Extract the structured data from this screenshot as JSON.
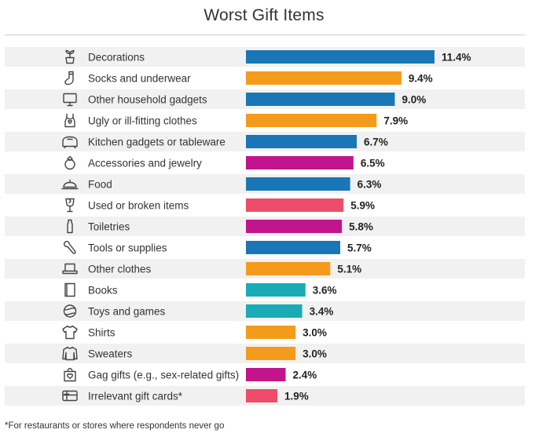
{
  "title": "Worst Gift Items",
  "footnote": "*For restaurants or stores where respondents never go",
  "colors": {
    "blue": "#1a77b5",
    "orange": "#f59b1c",
    "magenta": "#c2148c",
    "pink": "#ee4d6a",
    "teal": "#1aabb5",
    "stripe": "#f1f1f1"
  },
  "chart_data": {
    "type": "bar",
    "orientation": "horizontal",
    "title": "Worst Gift Items",
    "value_suffix": "%",
    "xlim": [
      0,
      11.4
    ],
    "rows": [
      {
        "label": "Decorations",
        "value": 11.4,
        "value_label": "11.4%",
        "color": "blue",
        "icon": "potted-plant-icon"
      },
      {
        "label": "Socks and underwear",
        "value": 9.4,
        "value_label": "9.4%",
        "color": "orange",
        "icon": "sock-icon"
      },
      {
        "label": "Other household gadgets",
        "value": 9.0,
        "value_label": "9.0%",
        "color": "blue",
        "icon": "monitor-icon"
      },
      {
        "label": "Ugly or ill-fitting clothes",
        "value": 7.9,
        "value_label": "7.9%",
        "color": "orange",
        "icon": "tank-top-icon"
      },
      {
        "label": "Kitchen gadgets or tableware",
        "value": 6.7,
        "value_label": "6.7%",
        "color": "blue",
        "icon": "toaster-icon"
      },
      {
        "label": "Accessories and jewelry",
        "value": 6.5,
        "value_label": "6.5%",
        "color": "magenta",
        "icon": "ring-icon"
      },
      {
        "label": "Food",
        "value": 6.3,
        "value_label": "6.3%",
        "color": "blue",
        "icon": "food-cloche-icon"
      },
      {
        "label": "Used or broken items",
        "value": 5.9,
        "value_label": "5.9%",
        "color": "pink",
        "icon": "broken-glass-icon"
      },
      {
        "label": "Toiletries",
        "value": 5.8,
        "value_label": "5.8%",
        "color": "magenta",
        "icon": "bottle-icon"
      },
      {
        "label": "Tools or supplies",
        "value": 5.7,
        "value_label": "5.7%",
        "color": "blue",
        "icon": "wrench-icon"
      },
      {
        "label": "Other clothes",
        "value": 5.1,
        "value_label": "5.1%",
        "color": "orange",
        "icon": "hat-icon"
      },
      {
        "label": "Books",
        "value": 3.6,
        "value_label": "3.6%",
        "color": "teal",
        "icon": "book-icon"
      },
      {
        "label": "Toys and games",
        "value": 3.4,
        "value_label": "3.4%",
        "color": "teal",
        "icon": "ball-icon"
      },
      {
        "label": "Shirts",
        "value": 3.0,
        "value_label": "3.0%",
        "color": "orange",
        "icon": "shirt-icon"
      },
      {
        "label": "Sweaters",
        "value": 3.0,
        "value_label": "3.0%",
        "color": "orange",
        "icon": "sweater-icon"
      },
      {
        "label": "Gag gifts (e.g., sex-related gifts)",
        "value": 2.4,
        "value_label": "2.4%",
        "color": "magenta",
        "icon": "gift-bag-heart-icon"
      },
      {
        "label": "Irrelevant gift cards*",
        "value": 1.9,
        "value_label": "1.9%",
        "color": "pink",
        "icon": "gift-card-icon"
      }
    ]
  }
}
